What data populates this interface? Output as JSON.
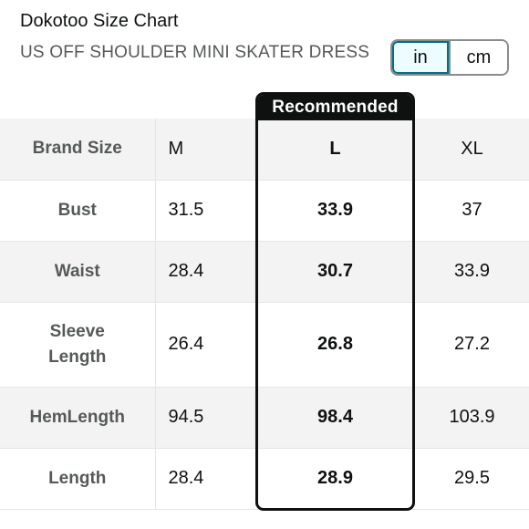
{
  "header": {
    "title": "Dokotoo Size Chart",
    "subtitle": "US OFF SHOULDER MINI SKATER DRESS"
  },
  "unit_toggle": {
    "options": [
      "in",
      "cm"
    ],
    "selected": "in"
  },
  "recommended_label": "Recommended",
  "table": {
    "header": [
      "Brand Size",
      "M",
      "L",
      "XL"
    ],
    "rows": [
      {
        "label": "Bust",
        "values": [
          "31.5",
          "33.9",
          "37"
        ]
      },
      {
        "label": "Waist",
        "values": [
          "28.4",
          "30.7",
          "33.9"
        ]
      },
      {
        "label": "Sleeve Length",
        "values": [
          "26.4",
          "26.8",
          "27.2"
        ]
      },
      {
        "label": "HemLength",
        "values": [
          "94.5",
          "98.4",
          "103.9"
        ]
      },
      {
        "label": "Length",
        "values": [
          "28.4",
          "28.9",
          "29.5"
        ]
      }
    ]
  },
  "colors": {
    "selected_border": "#007185",
    "recommended_border": "#0f1111",
    "row_shade": "#f3f3f3"
  }
}
